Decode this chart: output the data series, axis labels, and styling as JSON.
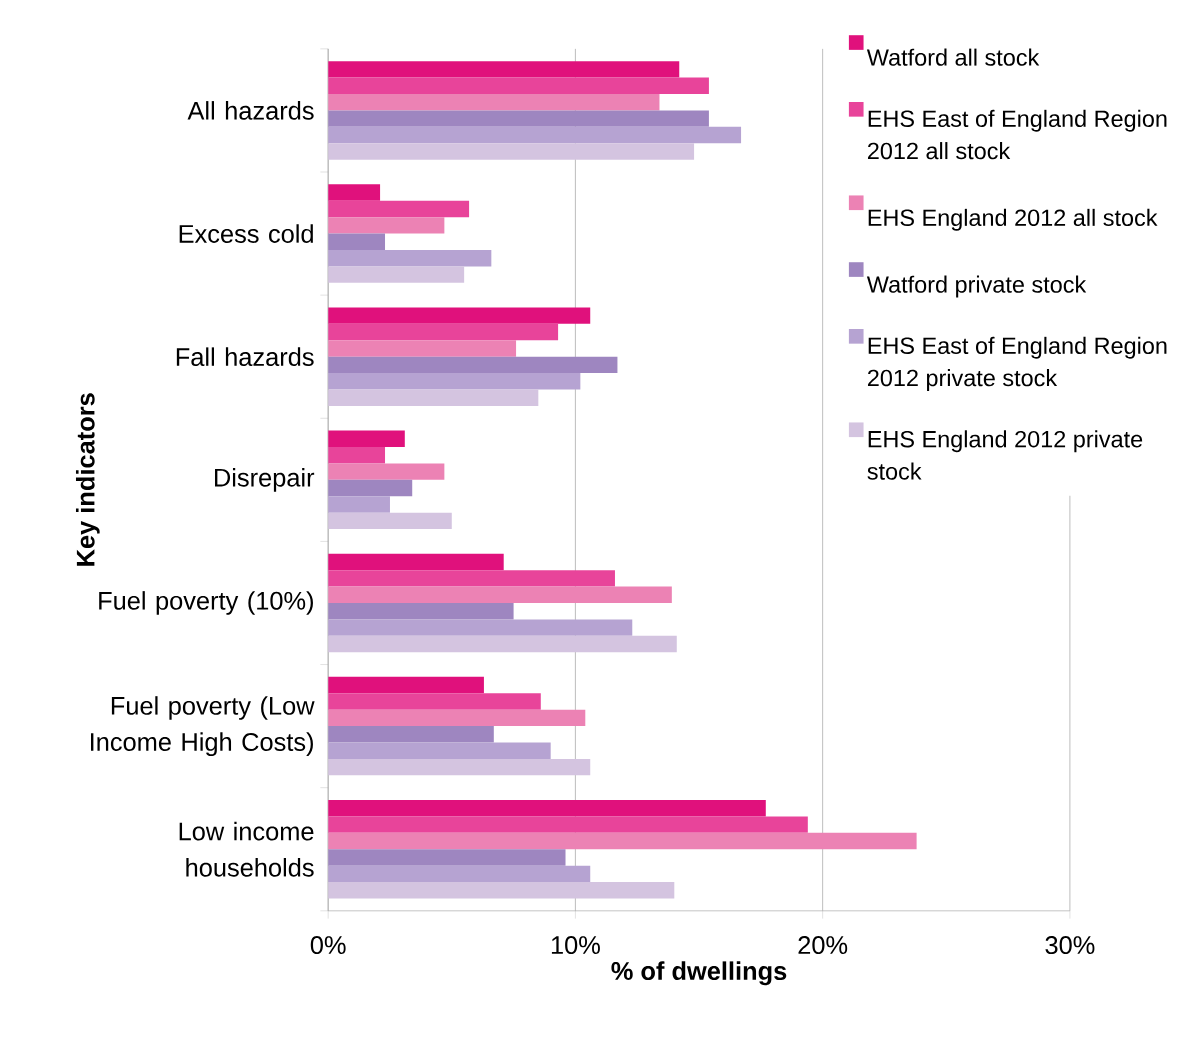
{
  "chart_data": {
    "type": "bar",
    "orientation": "horizontal",
    "xlabel": "% of dwellings",
    "ylabel": "Key indicators",
    "categories": [
      "All hazards",
      "Excess cold",
      "Fall hazards",
      "Disrepair",
      "Fuel poverty (10%)",
      "Fuel poverty (Low Income High Costs)",
      "Low income households"
    ],
    "series": [
      {
        "name": "Watford all stock",
        "color": "#e0117c",
        "values": [
          14.2,
          2.1,
          10.6,
          3.1,
          7.1,
          6.3,
          17.7
        ]
      },
      {
        "name": "EHS East of England Region 2012 all stock",
        "color": "#e8449a",
        "values": [
          15.4,
          5.7,
          9.3,
          2.3,
          11.6,
          8.6,
          19.4
        ]
      },
      {
        "name": "EHS England 2012 all stock",
        "color": "#ec82b4",
        "values": [
          13.4,
          4.7,
          7.6,
          4.7,
          13.9,
          10.4,
          23.8
        ]
      },
      {
        "name": "Watford private stock",
        "color": "#9e86c0",
        "values": [
          15.4,
          2.3,
          11.7,
          3.4,
          7.5,
          6.7,
          9.6
        ]
      },
      {
        "name": "EHS East of England Region 2012 private stock",
        "color": "#b6a3d2",
        "values": [
          16.7,
          6.6,
          10.2,
          2.5,
          12.3,
          9.0,
          10.6
        ]
      },
      {
        "name": "EHS England 2012 private stock",
        "color": "#d4c4e0",
        "values": [
          14.8,
          5.5,
          8.5,
          5.0,
          14.1,
          10.6,
          14.0
        ]
      }
    ],
    "xlim": [
      0,
      30
    ],
    "xticks": [
      {
        "value": 0,
        "label": "0%"
      },
      {
        "value": 10,
        "label": "10%"
      },
      {
        "value": 20,
        "label": "20%"
      },
      {
        "value": 30,
        "label": "30%"
      }
    ],
    "grid": "x",
    "legend": "top right"
  }
}
